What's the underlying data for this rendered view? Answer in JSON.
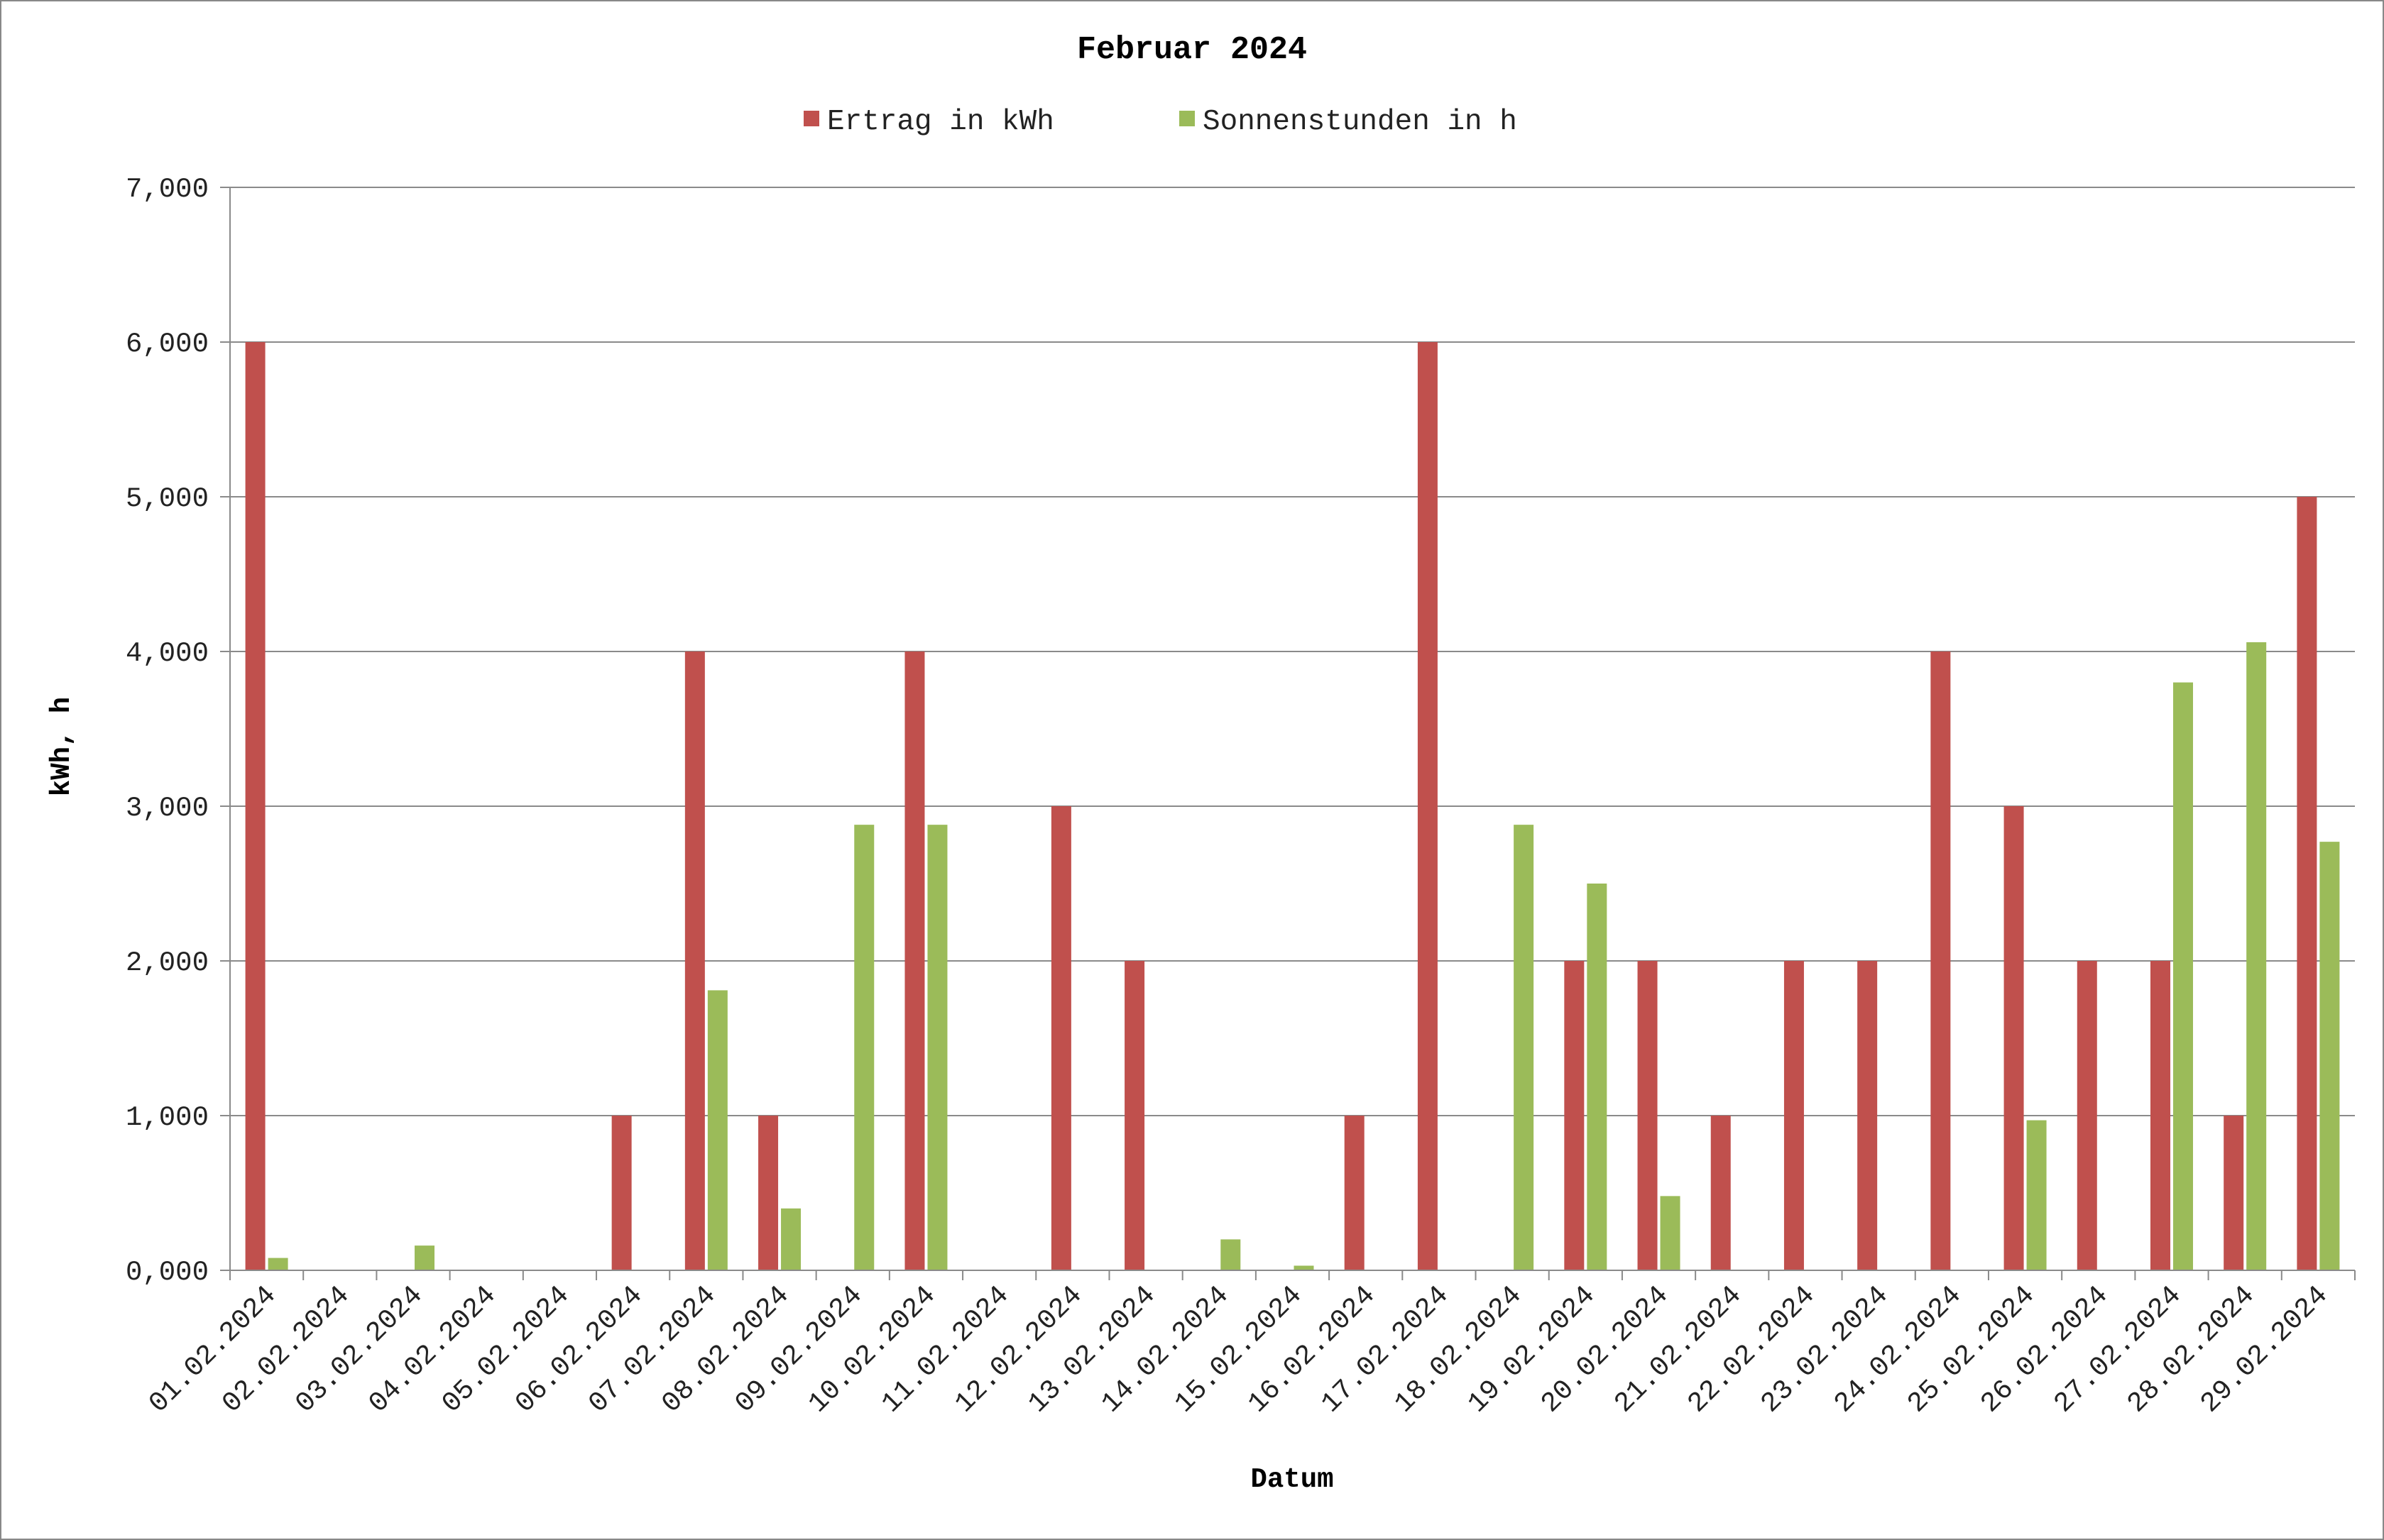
{
  "chart_data": {
    "type": "bar",
    "title": "Februar 2024",
    "xlabel": "Datum",
    "ylabel": "kWh, h",
    "ylim": [
      0,
      7000
    ],
    "yticks": [
      0,
      1000,
      2000,
      3000,
      4000,
      5000,
      6000,
      7000
    ],
    "ytick_labels": [
      "0,000",
      "1,000",
      "2,000",
      "3,000",
      "4,000",
      "5,000",
      "6,000",
      "7,000"
    ],
    "grid": true,
    "legend_position": "top",
    "categories": [
      "01.02.2024",
      "02.02.2024",
      "03.02.2024",
      "04.02.2024",
      "05.02.2024",
      "06.02.2024",
      "07.02.2024",
      "08.02.2024",
      "09.02.2024",
      "10.02.2024",
      "11.02.2024",
      "12.02.2024",
      "13.02.2024",
      "14.02.2024",
      "15.02.2024",
      "16.02.2024",
      "17.02.2024",
      "18.02.2024",
      "19.02.2024",
      "20.02.2024",
      "21.02.2024",
      "22.02.2024",
      "23.02.2024",
      "24.02.2024",
      "25.02.2024",
      "26.02.2024",
      "27.02.2024",
      "28.02.2024",
      "29.02.2024"
    ],
    "series": [
      {
        "name": "Ertrag in kWh",
        "color": "#c0504d",
        "values": [
          6000,
          0,
          0,
          0,
          0,
          1000,
          4000,
          1000,
          0,
          4000,
          0,
          3000,
          2000,
          0,
          0,
          1000,
          6000,
          0,
          2000,
          2000,
          1000,
          2000,
          2000,
          4000,
          3000,
          2000,
          2000,
          1000,
          5000
        ]
      },
      {
        "name": "Sonnenstunden in h",
        "color": "#9bbb59",
        "values": [
          80,
          0,
          160,
          0,
          0,
          0,
          1810,
          400,
          2880,
          2880,
          0,
          0,
          0,
          200,
          30,
          0,
          0,
          2880,
          2500,
          480,
          0,
          0,
          0,
          0,
          970,
          0,
          3800,
          4060,
          2770
        ]
      }
    ]
  }
}
